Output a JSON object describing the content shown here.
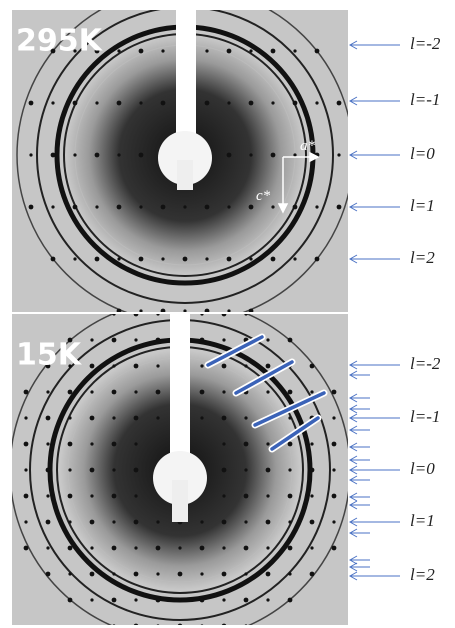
{
  "panels": [
    {
      "label": "295K",
      "axis_a": "a*",
      "axis_c": "c*",
      "row_labels": [
        "l=-2",
        "l=-1",
        "l=0",
        "l=1",
        "l=2"
      ]
    },
    {
      "label": "15K",
      "row_labels": [
        "l=-2",
        "l=-1",
        "l=0",
        "l=1",
        "l=2"
      ]
    }
  ]
}
